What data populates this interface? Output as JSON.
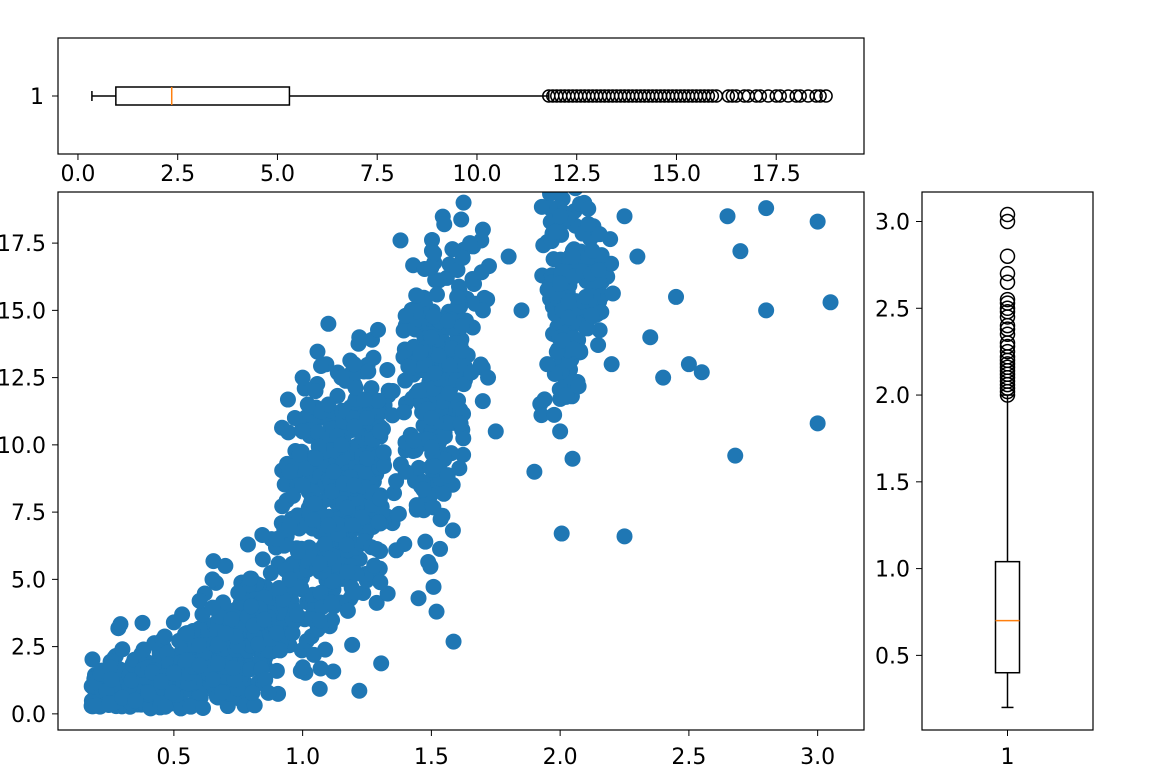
{
  "chart_data": [
    {
      "type": "box",
      "orient": "horizontal",
      "title": "",
      "xlabel": "",
      "ylabel": "",
      "category_labels": [
        "1"
      ],
      "xlim": [
        -0.5,
        19.7
      ],
      "x_ticks": [
        0.0,
        2.5,
        5.0,
        7.5,
        10.0,
        12.5,
        15.0,
        17.5
      ],
      "x_tick_labels": [
        "0.0",
        "2.5",
        "5.0",
        "7.5",
        "10.0",
        "12.5",
        "15.0",
        "17.5"
      ],
      "whisker_low": 0.35,
      "q1": 0.95,
      "median": 2.35,
      "q3": 5.3,
      "whisker_high": 11.8,
      "fliers_range": [
        11.8,
        18.75
      ],
      "fliers": [
        11.8,
        11.9,
        12.0,
        12.1,
        12.2,
        12.3,
        12.4,
        12.5,
        12.6,
        12.7,
        12.8,
        12.9,
        13.0,
        13.1,
        13.2,
        13.3,
        13.4,
        13.5,
        13.6,
        13.7,
        13.8,
        13.9,
        14.0,
        14.1,
        14.2,
        14.3,
        14.4,
        14.5,
        14.6,
        14.7,
        14.8,
        14.9,
        15.0,
        15.1,
        15.2,
        15.3,
        15.4,
        15.5,
        15.6,
        15.7,
        15.8,
        15.9,
        16.0,
        16.3,
        16.4,
        16.5,
        16.7,
        16.8,
        17.0,
        17.1,
        17.3,
        17.5,
        17.6,
        17.8,
        18.0,
        18.1,
        18.3,
        18.5,
        18.6,
        18.75
      ],
      "colors": {
        "box": "#000000",
        "median": "#ff7f0e"
      }
    },
    {
      "type": "scatter",
      "title": "",
      "xlabel": "",
      "ylabel": "",
      "xlim": [
        0.05,
        3.18
      ],
      "ylim": [
        -0.6,
        19.4
      ],
      "x_ticks": [
        0.5,
        1.0,
        1.5,
        2.0,
        2.5,
        3.0
      ],
      "x_tick_labels": [
        "0.5",
        "1.0",
        "1.5",
        "2.0",
        "2.5",
        "3.0"
      ],
      "y_ticks": [
        0.0,
        2.5,
        5.0,
        7.5,
        10.0,
        12.5,
        15.0,
        17.5
      ],
      "y_tick_labels": [
        "0.0",
        "2.5",
        "5.0",
        "7.5",
        "10.0",
        "12.5",
        "15.0",
        "17.5"
      ],
      "color": "#1f77b4",
      "points": [
        [
          0.2,
          0.3
        ],
        [
          0.25,
          0.4
        ],
        [
          0.3,
          0.6
        ],
        [
          0.35,
          0.5
        ],
        [
          0.4,
          0.8
        ],
        [
          0.3,
          2.4
        ],
        [
          0.45,
          1.2
        ],
        [
          0.5,
          1.5
        ],
        [
          0.55,
          2.0
        ],
        [
          0.6,
          1.8
        ],
        [
          0.5,
          3.4
        ],
        [
          0.55,
          3.0
        ],
        [
          0.6,
          4.2
        ],
        [
          0.65,
          5.0
        ],
        [
          0.7,
          5.5
        ],
        [
          0.7,
          3.0
        ],
        [
          0.75,
          4.5
        ],
        [
          0.8,
          4.0
        ],
        [
          0.85,
          3.5
        ],
        [
          0.9,
          1.6
        ],
        [
          0.9,
          3.0
        ],
        [
          0.9,
          6.5
        ],
        [
          0.95,
          7.0
        ],
        [
          0.95,
          5.0
        ],
        [
          0.95,
          9.0
        ],
        [
          0.97,
          11.0
        ],
        [
          1.0,
          8.5
        ],
        [
          1.0,
          10.5
        ],
        [
          1.0,
          12.5
        ],
        [
          1.02,
          11.5
        ],
        [
          1.05,
          9.5
        ],
        [
          1.05,
          12.0
        ],
        [
          1.1,
          7.0
        ],
        [
          1.1,
          11.5
        ],
        [
          1.1,
          14.5
        ],
        [
          1.12,
          9.0
        ],
        [
          1.15,
          12.5
        ],
        [
          1.15,
          10.0
        ],
        [
          1.2,
          8.5
        ],
        [
          1.2,
          13.0
        ],
        [
          1.22,
          14.0
        ],
        [
          1.25,
          11.0
        ],
        [
          1.25,
          9.5
        ],
        [
          1.3,
          10.5
        ],
        [
          1.3,
          8.0
        ],
        [
          1.35,
          12.0
        ],
        [
          1.38,
          17.6
        ],
        [
          1.4,
          14.8
        ],
        [
          1.4,
          9.0
        ],
        [
          1.45,
          12.0
        ],
        [
          1.45,
          4.3
        ],
        [
          1.5,
          16.6
        ],
        [
          1.5,
          14.0
        ],
        [
          1.5,
          11.0
        ],
        [
          1.52,
          3.8
        ],
        [
          1.55,
          18.2
        ],
        [
          1.6,
          15.5
        ],
        [
          1.62,
          13.5
        ],
        [
          1.65,
          17.5
        ],
        [
          1.7,
          15.0
        ],
        [
          1.7,
          18.0
        ],
        [
          1.72,
          12.5
        ],
        [
          1.75,
          10.5
        ],
        [
          1.8,
          17.0
        ],
        [
          1.85,
          15.0
        ],
        [
          1.9,
          9.0
        ],
        [
          1.95,
          13.0
        ],
        [
          2.0,
          18.5
        ],
        [
          2.0,
          16.0
        ],
        [
          2.0,
          10.5
        ],
        [
          2.05,
          17.0
        ],
        [
          2.1,
          15.5
        ],
        [
          2.15,
          16.5
        ],
        [
          2.2,
          13.0
        ],
        [
          2.25,
          18.5
        ],
        [
          2.3,
          17.0
        ],
        [
          2.35,
          14.0
        ],
        [
          2.4,
          12.5
        ],
        [
          2.45,
          15.5
        ],
        [
          2.5,
          13.0
        ],
        [
          2.55,
          12.7
        ],
        [
          2.65,
          18.5
        ],
        [
          2.7,
          17.2
        ],
        [
          2.8,
          18.8
        ],
        [
          2.8,
          15.0
        ],
        [
          3.0,
          10.8
        ],
        [
          3.0,
          18.3
        ],
        [
          3.05,
          15.3
        ],
        [
          2.68,
          9.6
        ],
        [
          2.25,
          6.6
        ]
      ],
      "clusters": [
        {
          "x": 0.35,
          "y": 0.9,
          "sx": 0.12,
          "sy": 0.5,
          "n": 220
        },
        {
          "x": 0.6,
          "y": 1.9,
          "sx": 0.12,
          "sy": 0.8,
          "n": 200
        },
        {
          "x": 0.85,
          "y": 3.3,
          "sx": 0.1,
          "sy": 1.2,
          "n": 140
        },
        {
          "x": 1.1,
          "y": 7.8,
          "sx": 0.09,
          "sy": 2.5,
          "n": 330
        },
        {
          "x": 1.25,
          "y": 9.5,
          "sx": 0.07,
          "sy": 2.0,
          "n": 120
        },
        {
          "x": 1.5,
          "y": 12.0,
          "sx": 0.05,
          "sy": 2.8,
          "n": 200
        },
        {
          "x": 1.6,
          "y": 14.0,
          "sx": 0.06,
          "sy": 2.0,
          "n": 80
        },
        {
          "x": 2.02,
          "y": 15.5,
          "sx": 0.04,
          "sy": 2.8,
          "n": 120
        },
        {
          "x": 2.12,
          "y": 16.5,
          "sx": 0.05,
          "sy": 1.5,
          "n": 50
        }
      ]
    },
    {
      "type": "box",
      "orient": "vertical",
      "title": "",
      "xlabel": "",
      "ylabel": "",
      "category_labels": [
        "1"
      ],
      "ylim": [
        0.07,
        3.17
      ],
      "y_ticks": [
        0.5,
        1.0,
        1.5,
        2.0,
        2.5,
        3.0
      ],
      "y_tick_labels": [
        "0.5",
        "1.0",
        "1.5",
        "2.0",
        "2.5",
        "3.0"
      ],
      "whisker_low": 0.2,
      "q1": 0.4,
      "median": 0.7,
      "q3": 1.04,
      "whisker_high": 2.0,
      "fliers_range": [
        2.0,
        3.04
      ],
      "fliers": [
        2.0,
        2.02,
        2.04,
        2.06,
        2.08,
        2.1,
        2.12,
        2.14,
        2.16,
        2.18,
        2.2,
        2.22,
        2.25,
        2.28,
        2.3,
        2.35,
        2.38,
        2.4,
        2.45,
        2.48,
        2.5,
        2.53,
        2.55,
        2.65,
        2.7,
        2.8,
        3.0,
        3.04
      ],
      "colors": {
        "box": "#000000",
        "median": "#ff7f0e"
      }
    }
  ]
}
